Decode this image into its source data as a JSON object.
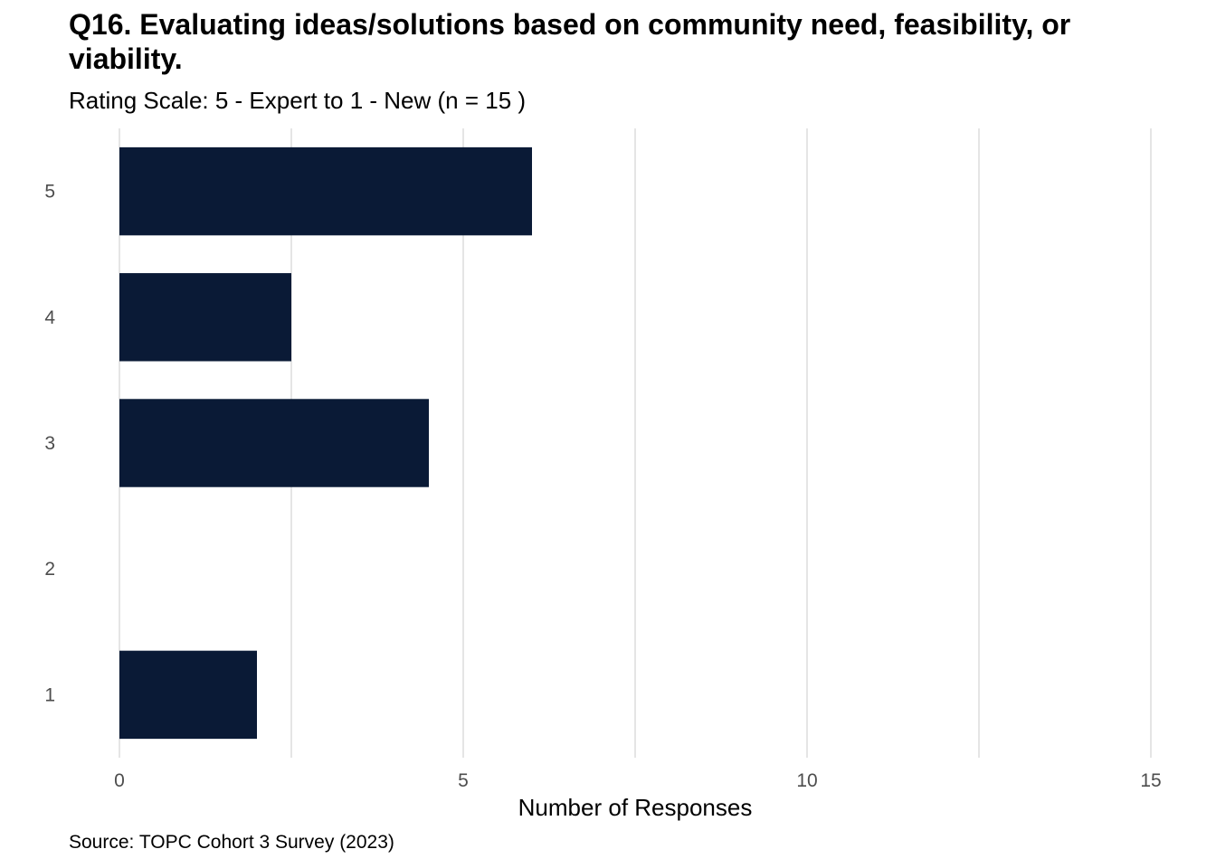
{
  "chart_data": {
    "type": "bar",
    "orientation": "horizontal",
    "title": "Q16. Evaluating ideas/solutions based on community need, feasibility, or viability.",
    "subtitle": "Rating Scale: 5 - Expert to 1 - New (n = 15 )",
    "caption": "Source: TOPC Cohort 3 Survey (2023)",
    "xlabel": "Number of Responses",
    "ylabel": "",
    "categories": [
      "5",
      "4",
      "3",
      "2",
      "1"
    ],
    "values": [
      6,
      2.5,
      4.5,
      0,
      2
    ],
    "xlim": [
      0,
      15
    ],
    "x_ticks": [
      0,
      5,
      10,
      15
    ],
    "grid": true,
    "bar_color": "#0a1a36",
    "grid_color": "#e5e5e5"
  }
}
